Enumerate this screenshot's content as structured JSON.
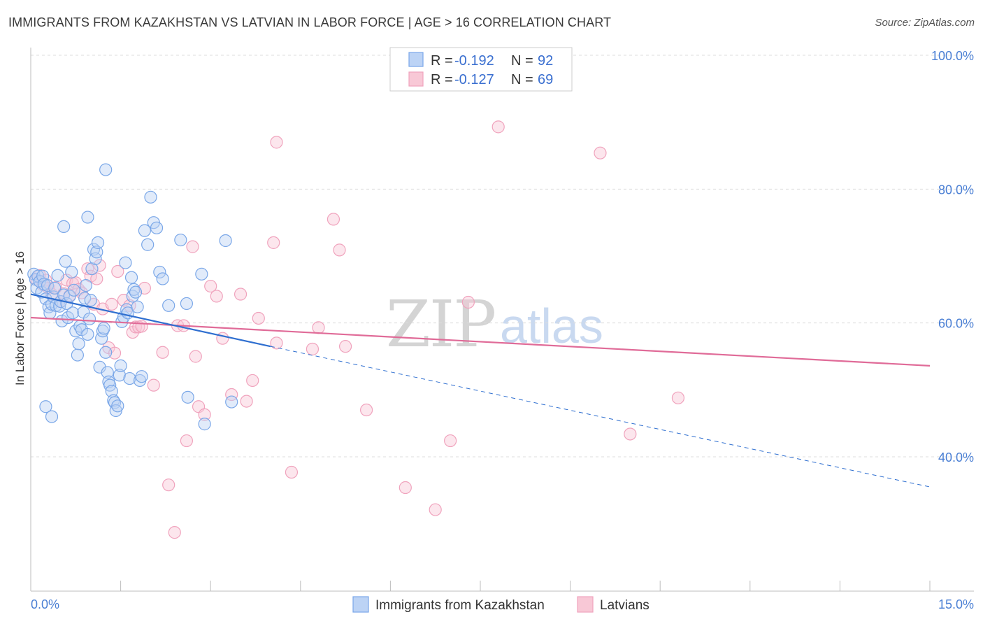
{
  "title": "IMMIGRANTS FROM KAZAKHSTAN VS LATVIAN IN LABOR FORCE | AGE > 16 CORRELATION CHART",
  "source": "Source: ZipAtlas.com",
  "watermark": {
    "part1": "ZIP",
    "part2": "atlas"
  },
  "legend": {
    "r_label": "R =",
    "n_label": "N =",
    "series": [
      {
        "r": "-0.192",
        "n": "92"
      },
      {
        "r": "-0.127",
        "n": "69"
      }
    ]
  },
  "chart_data": {
    "type": "scatter",
    "title": "IMMIGRANTS FROM KAZAKHSTAN VS LATVIAN IN LABOR FORCE | AGE > 16 CORRELATION CHART",
    "xlabel": "",
    "ylabel": "In Labor Force | Age > 16",
    "xlim": [
      0,
      15
    ],
    "ylim": [
      20,
      104
    ],
    "x_tick_labels": [
      "0.0%",
      "15.0%"
    ],
    "y_ticks": [
      40,
      60,
      80,
      100
    ],
    "y_tick_labels": [
      "40.0%",
      "60.0%",
      "80.0%",
      "100.0%"
    ],
    "legend_position": "top-center",
    "series": [
      {
        "name": "Immigrants from Kazakhstan",
        "color": "#7aa7e8",
        "line_color": "#2f6fd0",
        "trend": {
          "x": [
            0.0,
            4.0
          ],
          "y": [
            64.3,
            56.5
          ]
        },
        "trend_extension": {
          "x": [
            4.0,
            15.0
          ],
          "y": [
            56.5,
            35.5
          ]
        },
        "points": [
          [
            0.05,
            67.3
          ],
          [
            0.08,
            66.5
          ],
          [
            0.1,
            65.2
          ],
          [
            0.12,
            67.0
          ],
          [
            0.15,
            66.2
          ],
          [
            0.18,
            64.6
          ],
          [
            0.2,
            67.0
          ],
          [
            0.22,
            65.8
          ],
          [
            0.25,
            63.6
          ],
          [
            0.28,
            65.6
          ],
          [
            0.3,
            62.4
          ],
          [
            0.32,
            61.5
          ],
          [
            0.35,
            62.8
          ],
          [
            0.38,
            63.9
          ],
          [
            0.4,
            65.2
          ],
          [
            0.42,
            62.6
          ],
          [
            0.45,
            67.1
          ],
          [
            0.48,
            62.5
          ],
          [
            0.5,
            63.2
          ],
          [
            0.52,
            60.3
          ],
          [
            0.55,
            64.2
          ],
          [
            0.58,
            69.2
          ],
          [
            0.6,
            62.9
          ],
          [
            0.62,
            60.8
          ],
          [
            0.65,
            64.0
          ],
          [
            0.68,
            67.6
          ],
          [
            0.7,
            61.5
          ],
          [
            0.72,
            64.9
          ],
          [
            0.75,
            58.8
          ],
          [
            0.78,
            55.2
          ],
          [
            0.8,
            56.9
          ],
          [
            0.82,
            59.5
          ],
          [
            0.85,
            59.0
          ],
          [
            0.88,
            61.6
          ],
          [
            0.9,
            63.7
          ],
          [
            0.92,
            65.6
          ],
          [
            0.95,
            58.3
          ],
          [
            0.98,
            60.6
          ],
          [
            1.0,
            63.4
          ],
          [
            1.02,
            68.1
          ],
          [
            1.05,
            71.0
          ],
          [
            1.08,
            69.6
          ],
          [
            1.1,
            70.6
          ],
          [
            1.12,
            72.0
          ],
          [
            1.15,
            53.4
          ],
          [
            1.18,
            57.7
          ],
          [
            1.2,
            58.8
          ],
          [
            1.22,
            59.2
          ],
          [
            1.25,
            55.6
          ],
          [
            1.28,
            52.6
          ],
          [
            1.3,
            51.2
          ],
          [
            1.32,
            50.7
          ],
          [
            1.35,
            49.8
          ],
          [
            1.38,
            48.4
          ],
          [
            1.4,
            48.1
          ],
          [
            1.42,
            46.9
          ],
          [
            1.45,
            47.6
          ],
          [
            1.48,
            52.2
          ],
          [
            1.5,
            53.6
          ],
          [
            1.52,
            60.2
          ],
          [
            1.55,
            60.9
          ],
          [
            1.58,
            69.0
          ],
          [
            1.6,
            62.0
          ],
          [
            1.62,
            61.5
          ],
          [
            1.65,
            51.7
          ],
          [
            1.68,
            66.8
          ],
          [
            1.7,
            64.0
          ],
          [
            1.72,
            65.0
          ],
          [
            1.75,
            64.6
          ],
          [
            1.78,
            62.4
          ],
          [
            1.82,
            51.4
          ],
          [
            1.85,
            52.0
          ],
          [
            1.9,
            73.8
          ],
          [
            1.95,
            71.7
          ],
          [
            2.0,
            78.8
          ],
          [
            2.05,
            75.0
          ],
          [
            2.1,
            74.2
          ],
          [
            2.15,
            67.6
          ],
          [
            2.2,
            66.6
          ],
          [
            2.3,
            62.6
          ],
          [
            2.5,
            72.4
          ],
          [
            2.6,
            62.9
          ],
          [
            2.62,
            48.9
          ],
          [
            2.85,
            67.3
          ],
          [
            2.9,
            44.9
          ],
          [
            3.25,
            72.3
          ],
          [
            3.35,
            48.2
          ],
          [
            0.25,
            47.5
          ],
          [
            0.35,
            46.0
          ],
          [
            0.55,
            74.4
          ],
          [
            1.25,
            82.9
          ],
          [
            0.95,
            75.8
          ]
        ]
      },
      {
        "name": "Latvians",
        "color": "#f0a3bd",
        "line_color": "#e06b98",
        "trend": {
          "x": [
            0.0,
            15.0
          ],
          "y": [
            60.8,
            53.6
          ]
        },
        "points": [
          [
            0.1,
            66.5
          ],
          [
            0.15,
            67.1
          ],
          [
            0.2,
            65.7
          ],
          [
            0.25,
            66.4
          ],
          [
            0.3,
            65.2
          ],
          [
            0.35,
            64.3
          ],
          [
            0.42,
            65.3
          ],
          [
            0.5,
            63.2
          ],
          [
            0.55,
            64.4
          ],
          [
            0.6,
            66.4
          ],
          [
            0.65,
            64.1
          ],
          [
            0.7,
            65.9
          ],
          [
            0.75,
            66.0
          ],
          [
            0.8,
            65.0
          ],
          [
            0.85,
            64.5
          ],
          [
            0.95,
            68.1
          ],
          [
            1.0,
            67.0
          ],
          [
            1.05,
            62.8
          ],
          [
            1.1,
            66.6
          ],
          [
            1.15,
            68.6
          ],
          [
            1.2,
            62.1
          ],
          [
            1.3,
            56.3
          ],
          [
            1.35,
            62.8
          ],
          [
            1.4,
            55.5
          ],
          [
            1.45,
            67.7
          ],
          [
            1.55,
            63.4
          ],
          [
            1.65,
            62.6
          ],
          [
            1.7,
            58.6
          ],
          [
            1.75,
            59.4
          ],
          [
            1.8,
            59.4
          ],
          [
            1.85,
            59.5
          ],
          [
            1.9,
            65.2
          ],
          [
            2.05,
            50.7
          ],
          [
            2.2,
            55.6
          ],
          [
            2.3,
            35.8
          ],
          [
            2.45,
            59.6
          ],
          [
            2.55,
            59.6
          ],
          [
            2.6,
            42.4
          ],
          [
            2.7,
            71.4
          ],
          [
            2.75,
            55.0
          ],
          [
            2.8,
            47.5
          ],
          [
            2.9,
            46.3
          ],
          [
            3.0,
            65.5
          ],
          [
            3.1,
            64.0
          ],
          [
            3.2,
            57.7
          ],
          [
            3.35,
            49.3
          ],
          [
            3.5,
            64.3
          ],
          [
            3.6,
            48.3
          ],
          [
            3.7,
            51.4
          ],
          [
            3.8,
            60.7
          ],
          [
            4.05,
            72.0
          ],
          [
            4.1,
            57.0
          ],
          [
            4.1,
            87.0
          ],
          [
            4.35,
            37.7
          ],
          [
            4.7,
            56.1
          ],
          [
            4.8,
            59.3
          ],
          [
            5.05,
            75.5
          ],
          [
            5.15,
            70.9
          ],
          [
            5.25,
            56.5
          ],
          [
            5.6,
            47.0
          ],
          [
            6.25,
            35.4
          ],
          [
            6.75,
            32.1
          ],
          [
            7.0,
            42.4
          ],
          [
            7.3,
            63.1
          ],
          [
            7.8,
            89.3
          ],
          [
            9.5,
            85.4
          ],
          [
            10.0,
            43.4
          ],
          [
            10.8,
            48.8
          ],
          [
            2.4,
            28.7
          ]
        ]
      }
    ]
  }
}
